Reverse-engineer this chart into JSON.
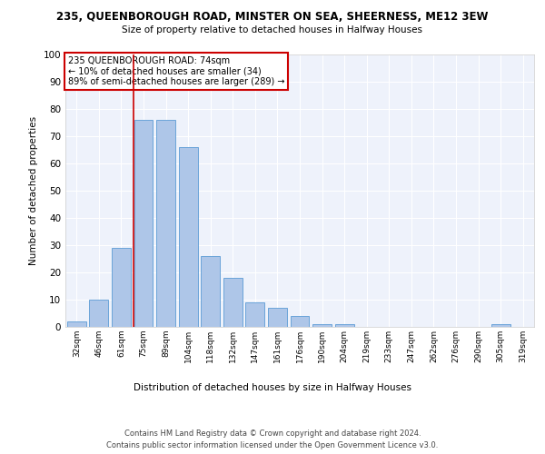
{
  "title": "235, QUEENBOROUGH ROAD, MINSTER ON SEA, SHEERNESS, ME12 3EW",
  "subtitle": "Size of property relative to detached houses in Halfway Houses",
  "xlabel": "Distribution of detached houses by size in Halfway Houses",
  "ylabel": "Number of detached properties",
  "categories": [
    "32sqm",
    "46sqm",
    "61sqm",
    "75sqm",
    "89sqm",
    "104sqm",
    "118sqm",
    "132sqm",
    "147sqm",
    "161sqm",
    "176sqm",
    "190sqm",
    "204sqm",
    "219sqm",
    "233sqm",
    "247sqm",
    "262sqm",
    "276sqm",
    "290sqm",
    "305sqm",
    "319sqm"
  ],
  "values": [
    2,
    10,
    29,
    76,
    76,
    66,
    26,
    18,
    9,
    7,
    4,
    1,
    1,
    0,
    0,
    0,
    0,
    0,
    0,
    1,
    0
  ],
  "bar_color": "#aec6e8",
  "bar_edge_color": "#5b9bd5",
  "property_label": "235 QUEENBOROUGH ROAD: 74sqm",
  "annotation_line1": "← 10% of detached houses are smaller (34)",
  "annotation_line2": "89% of semi-detached houses are larger (289) →",
  "vline_x_index": 3,
  "vline_color": "#cc0000",
  "annotation_box_color": "#cc0000",
  "ylim": [
    0,
    100
  ],
  "background_color": "#eef2fb",
  "footer_line1": "Contains HM Land Registry data © Crown copyright and database right 2024.",
  "footer_line2": "Contains public sector information licensed under the Open Government Licence v3.0."
}
